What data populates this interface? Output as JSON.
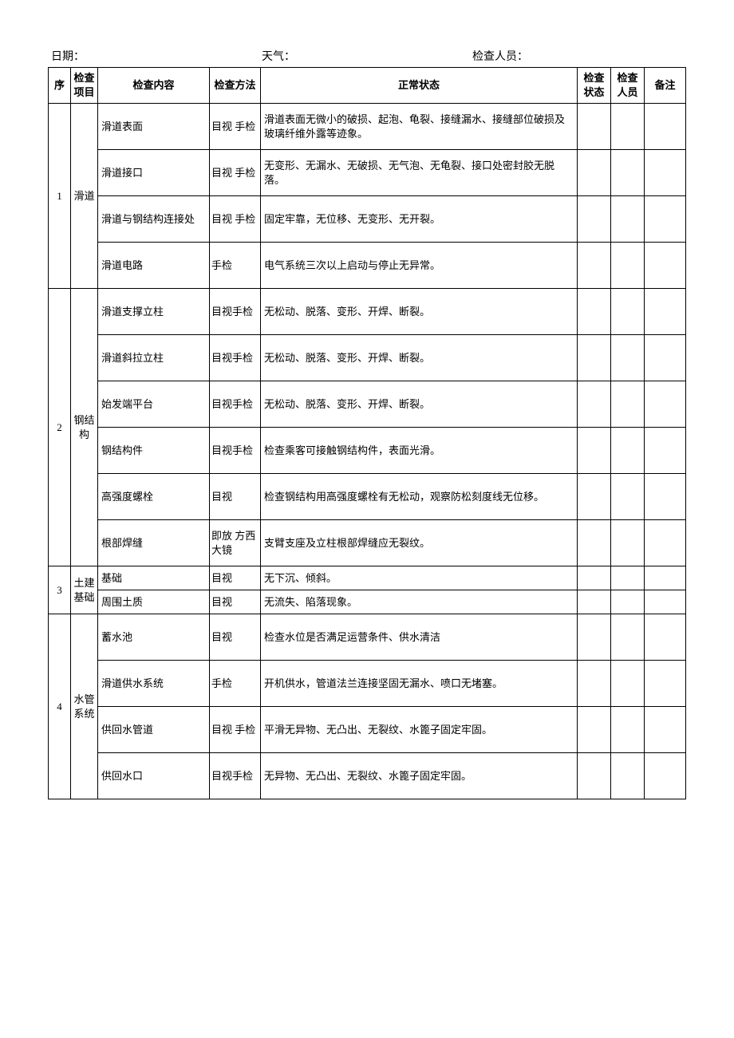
{
  "header": {
    "date_label": "日期：",
    "weather_label": "天气：",
    "inspector_label": "检查人员："
  },
  "columns": {
    "seq": "序",
    "item": "检查项目",
    "content": "检查内容",
    "method": "检查方法",
    "normal": "正常状态",
    "status": "检查状态",
    "inspector": "检查人员",
    "remark": "备注"
  },
  "groups": [
    {
      "seq": "1",
      "item": "滑道",
      "rows": [
        {
          "content": "滑道表面",
          "method": "目视 手检",
          "normal": "滑道表面无微小的破损、起泡、龟裂、接缝漏水、接缝部位破损及玻璃纤维外露等迹象。"
        },
        {
          "content": "滑道接口",
          "method": "目视 手检",
          "normal": "无变形、无漏水、无破损、无气泡、无龟裂、接口处密封胶无脱落。"
        },
        {
          "content": "滑道与钢结构连接处",
          "method": "目视 手检",
          "normal": "固定牢靠，无位移、无变形、无开裂。"
        },
        {
          "content": "滑道电路",
          "method": "手检",
          "normal": "电气系统三次以上启动与停止无异常。"
        }
      ]
    },
    {
      "seq": "2",
      "item": "钢结构",
      "rows": [
        {
          "content": "滑道支撑立柱",
          "method": "目视手检",
          "normal": "无松动、脱落、变形、开焊、断裂。"
        },
        {
          "content": "滑道斜拉立柱",
          "method": "目视手检",
          "normal": "无松动、脱落、变形、开焊、断裂。"
        },
        {
          "content": "始发端平台",
          "method": "目视手检",
          "normal": "无松动、脱落、变形、开焊、断裂。"
        },
        {
          "content": "钢结构件",
          "method": "目视手检",
          "normal": "检查乘客可接触钢结构件，表面光滑。"
        },
        {
          "content": "高强度螺栓",
          "method": "目视",
          "normal": "检查钢结构用高强度螺栓有无松动，观察防松刻度线无位移。"
        },
        {
          "content": "根部焊缝",
          "method": "即放 方西 大镜",
          "normal": "支臂支座及立柱根部焊缝应无裂纹。"
        }
      ]
    },
    {
      "seq": "3",
      "item": "土建基础",
      "rows": [
        {
          "content": "基础",
          "method": "目视",
          "normal": "无下沉、倾斜。"
        },
        {
          "content": "周围土质",
          "method": "目视",
          "normal": "无流失、陷落现象。"
        }
      ]
    },
    {
      "seq": "4",
      "item": "水管系统",
      "rows": [
        {
          "content": "蓄水池",
          "method": "目视",
          "normal": "检查水位是否满足运营条件、供水清洁"
        },
        {
          "content": "滑道供水系统",
          "method": "手检",
          "normal": "开机供水，管道法兰连接坚固无漏水、喷口无堵塞。"
        },
        {
          "content": "供回水管道",
          "method": "目视 手检",
          "normal": "平滑无异物、无凸出、无裂纹、水篦子固定牢固。"
        },
        {
          "content": "供回水口",
          "method": "目视手检",
          "normal": "无异物、无凸出、无裂纹、水篦子固定牢固。"
        }
      ]
    }
  ]
}
